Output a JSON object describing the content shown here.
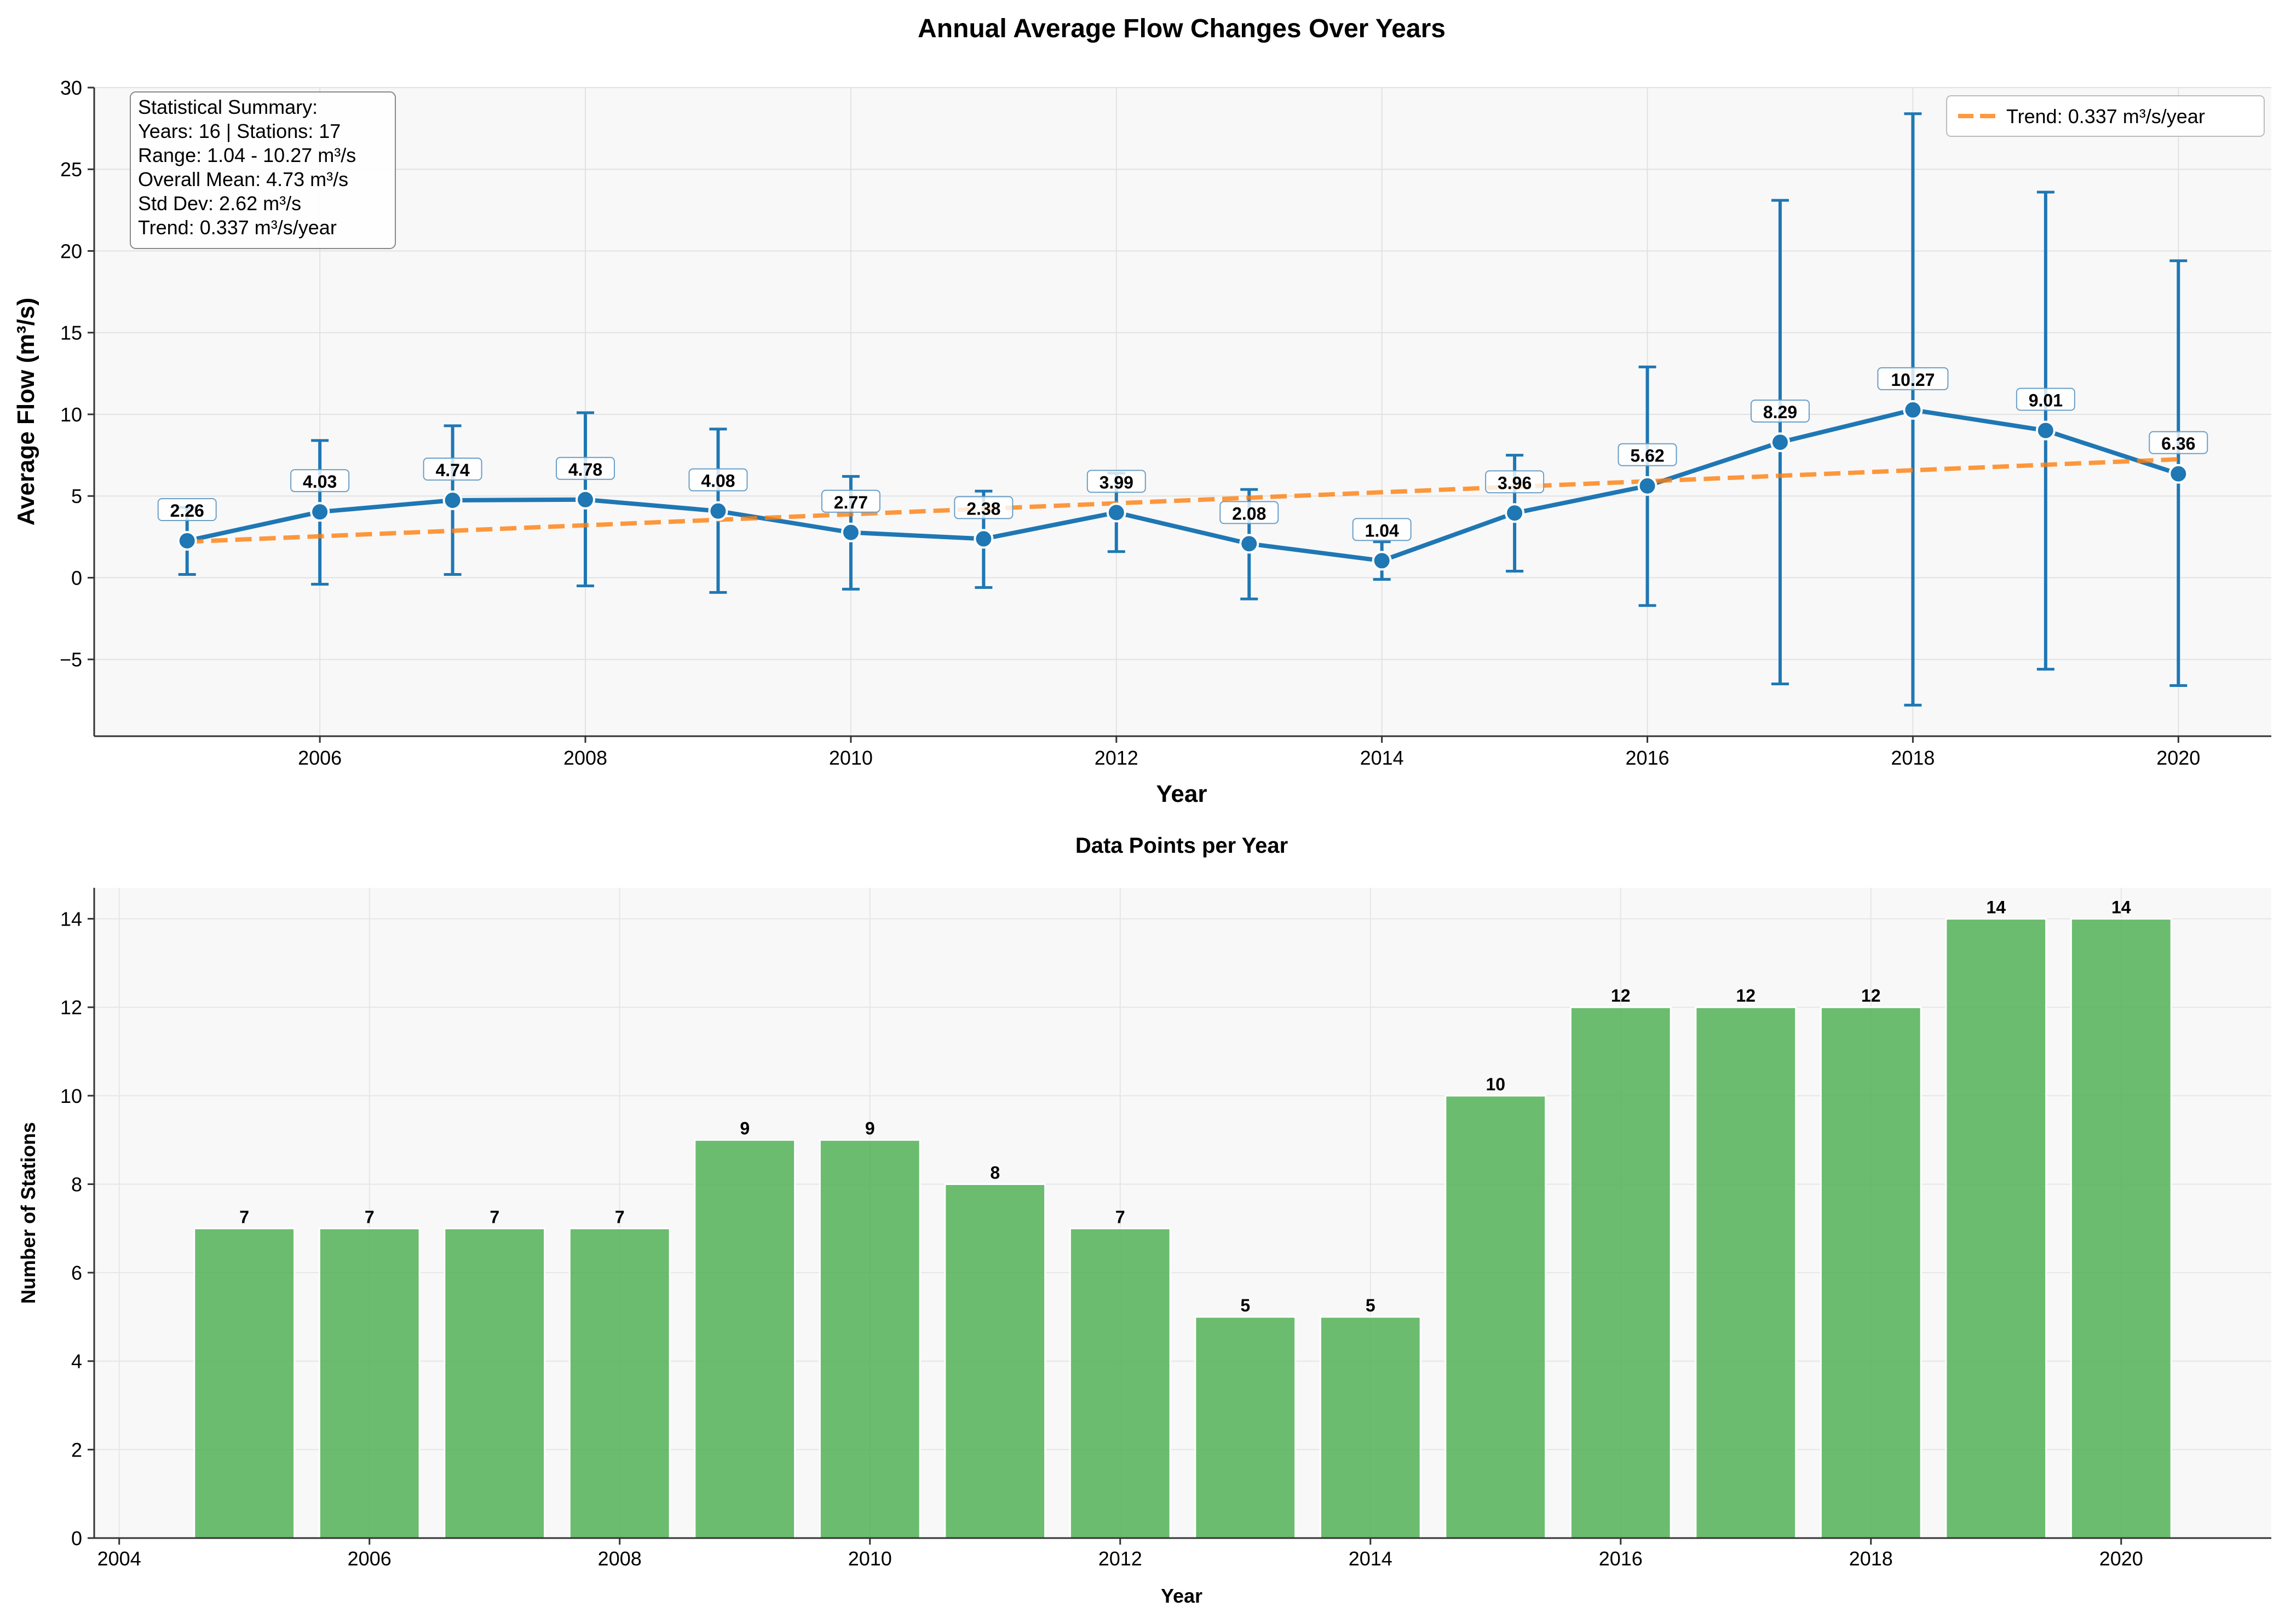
{
  "chart_data": [
    {
      "type": "line",
      "title": "Annual Average Flow Changes Over Years",
      "xlabel": "Year",
      "ylabel": "Average Flow (m³/s)",
      "xlim": [
        2004.3,
        2020.7
      ],
      "ylim": [
        -9.7,
        30
      ],
      "x_ticks": [
        2006,
        2008,
        2010,
        2012,
        2014,
        2016,
        2018,
        2020
      ],
      "x_tick_labels": [
        "2006",
        "2008",
        "2010",
        "2012",
        "2014",
        "2016",
        "2018",
        "2020"
      ],
      "y_ticks": [
        -5,
        0,
        5,
        10,
        15,
        20,
        25,
        30
      ],
      "y_tick_labels": [
        "−5",
        "0",
        "5",
        "10",
        "15",
        "20",
        "25",
        "30"
      ],
      "grid": true,
      "legend_position": "top-right",
      "x": [
        2005,
        2006,
        2007,
        2008,
        2009,
        2010,
        2011,
        2012,
        2013,
        2014,
        2015,
        2016,
        2017,
        2018,
        2019,
        2020
      ],
      "series": [
        {
          "values": [
            2.26,
            4.03,
            4.74,
            4.78,
            4.08,
            2.77,
            2.38,
            3.99,
            2.08,
            1.04,
            3.96,
            5.62,
            8.29,
            10.27,
            9.01,
            6.36
          ],
          "error_low": [
            0.2,
            -0.4,
            0.2,
            -0.5,
            -0.9,
            -0.7,
            -0.6,
            1.6,
            -1.3,
            -0.1,
            0.4,
            -1.7,
            -6.5,
            -7.8,
            -5.6,
            -6.6
          ],
          "error_high": [
            4.3,
            8.4,
            9.3,
            10.1,
            9.1,
            6.2,
            5.3,
            6.4,
            5.4,
            2.2,
            7.5,
            12.9,
            23.1,
            28.4,
            23.6,
            19.4
          ],
          "point_labels": [
            "2.26",
            "4.03",
            "4.74",
            "4.78",
            "4.08",
            "2.77",
            "2.38",
            "3.99",
            "2.08",
            "1.04",
            "3.96",
            "5.62",
            "8.29",
            "10.27",
            "9.01",
            "6.36"
          ],
          "color": "#1f77b4"
        },
        {
          "name": "Trend: 0.337 m³/s/year",
          "type": "dashed-line",
          "x": [
            2005,
            2020
          ],
          "values": [
            2.2,
            7.25
          ],
          "color": "#ff7f0e"
        }
      ],
      "annotation": [
        "Statistical Summary:",
        "Years: 16 | Stations: 17",
        "Range: 1.04 - 10.27 m³/s",
        "Overall Mean: 4.73 m³/s",
        "Std Dev: 2.62 m³/s",
        "Trend: 0.337 m³/s/year"
      ]
    },
    {
      "type": "bar",
      "title": "Data Points per Year",
      "xlabel": "Year",
      "ylabel": "Number of Stations",
      "xlim": [
        2003.8,
        2021.2
      ],
      "ylim": [
        0,
        14.7
      ],
      "x_ticks": [
        2004,
        2006,
        2008,
        2010,
        2012,
        2014,
        2016,
        2018,
        2020
      ],
      "x_tick_labels": [
        "2004",
        "2006",
        "2008",
        "2010",
        "2012",
        "2014",
        "2016",
        "2018",
        "2020"
      ],
      "y_ticks": [
        0,
        2,
        4,
        6,
        8,
        10,
        12,
        14
      ],
      "y_tick_labels": [
        "0",
        "2",
        "4",
        "6",
        "8",
        "10",
        "12",
        "14"
      ],
      "grid": true,
      "categories": [
        2005,
        2006,
        2007,
        2008,
        2009,
        2010,
        2011,
        2012,
        2013,
        2014,
        2015,
        2016,
        2017,
        2018,
        2019,
        2020
      ],
      "values": [
        7,
        7,
        7,
        7,
        9,
        9,
        8,
        7,
        5,
        5,
        10,
        12,
        12,
        12,
        14,
        14
      ],
      "value_labels": [
        "7",
        "7",
        "7",
        "7",
        "9",
        "9",
        "8",
        "7",
        "5",
        "5",
        "10",
        "12",
        "12",
        "12",
        "14",
        "14"
      ],
      "color": "#4caf50"
    }
  ]
}
